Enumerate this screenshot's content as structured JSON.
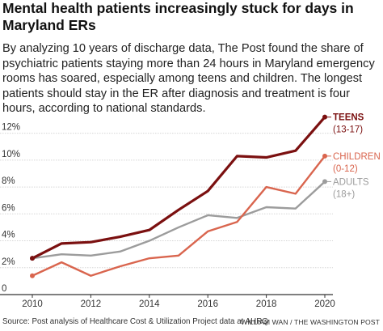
{
  "title": "Mental health patients increasingly stuck for days in Maryland ERs",
  "subtitle": "By analyzing 10 years of discharge data, The Post found the share of psychiatric patients staying more than 24 hours in Maryland emergency rooms has soared, especially among teens and children.  The longest patients should stay in the ER after diagnosis and treatment is four hours, according to national standards.",
  "source": "Source: Post analysis of Healthcare Cost & Utilization Project data at AHRQ",
  "credit": "WILLIAM WAN / THE WASHINGTON POST",
  "chart_data": {
    "type": "line",
    "x": [
      2010,
      2011,
      2012,
      2013,
      2014,
      2015,
      2016,
      2017,
      2018,
      2019,
      2020
    ],
    "xticks": [
      2010,
      2012,
      2014,
      2016,
      2018,
      2020
    ],
    "yticks": [
      0,
      2,
      4,
      6,
      8,
      10,
      12
    ],
    "ytick_labels": [
      "0",
      "2%",
      "4%",
      "6%",
      "8%",
      "10%",
      "12%"
    ],
    "xlim": [
      2010,
      2020
    ],
    "ylim": [
      0,
      13
    ],
    "grid": "horizontal",
    "series": [
      {
        "name": "TEENS",
        "sublabel": "(13-17)",
        "color": "#7b1010",
        "values": [
          2.7,
          3.8,
          3.9,
          4.3,
          4.8,
          6.3,
          7.7,
          10.3,
          10.2,
          10.7,
          13.2
        ]
      },
      {
        "name": "CHILDREN",
        "sublabel": "(0-12)",
        "color": "#d9654e",
        "values": [
          1.4,
          2.4,
          1.4,
          2.1,
          2.7,
          2.9,
          4.7,
          5.4,
          8.0,
          7.5,
          10.3
        ]
      },
      {
        "name": "ADULTS",
        "sublabel": "(18+)",
        "color": "#9c9c9c",
        "values": [
          2.7,
          3.0,
          2.9,
          3.2,
          4.0,
          5.0,
          5.9,
          5.7,
          6.5,
          6.4,
          8.4
        ]
      }
    ]
  }
}
